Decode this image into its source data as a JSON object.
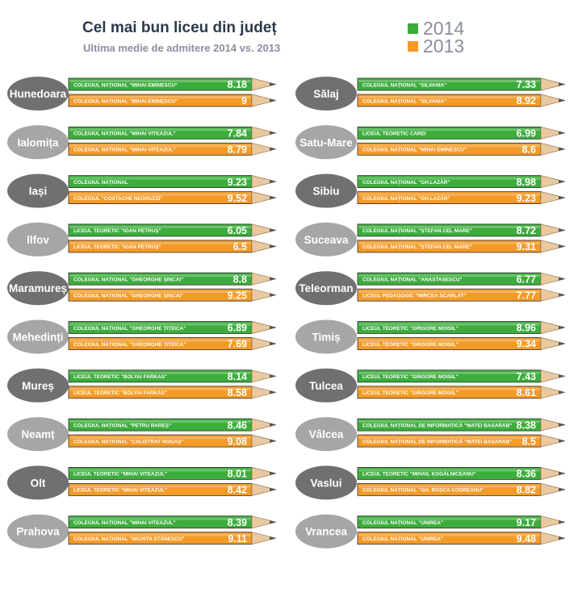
{
  "colors": {
    "green": "#3cad3c",
    "orange": "#f39a27",
    "oval_dark": "#707070",
    "oval_light": "#a6a6a6",
    "pencil_tip": "#e9c9a0",
    "pencil_lead": "#555555"
  },
  "chart_data": {
    "type": "bar",
    "title": "Cel mai bun liceu din județ",
    "subtitle": "Ultima medie de admitere 2014 vs. 2013",
    "legend": [
      {
        "name": "2014",
        "color": "#3cad3c"
      },
      {
        "name": "2013",
        "color": "#f39a27"
      }
    ],
    "legend_position": "top-right",
    "series_order": [
      "2014",
      "2013"
    ],
    "columns": [
      [
        {
          "county": "Hunedoara",
          "tone": "dark",
          "y2014": {
            "school": "COLEGIUL NAȚIONAL \"MIHAI EMINESCU\"",
            "value": "8.18"
          },
          "y2013": {
            "school": "COLEGIUL NAȚIONAL \"MIHAI EMINESCU\"",
            "value": "9"
          }
        },
        {
          "county": "Ialomița",
          "tone": "light",
          "y2014": {
            "school": "COLEGIUL NAȚIONAL \"MIHAI VITEAZUL\"",
            "value": "7.84"
          },
          "y2013": {
            "school": "COLEGIUL NAȚIONAL \"MIHAI VITEAZUL\"",
            "value": "8.79"
          }
        },
        {
          "county": "Iași",
          "tone": "dark",
          "y2014": {
            "school": "COLEGIUL NAȚIONAL",
            "value": "9.23"
          },
          "y2013": {
            "school": "COLEGIUL \"COSTACHE NEGRUZZI\"",
            "value": "9.52"
          }
        },
        {
          "county": "Ilfov",
          "tone": "light",
          "y2014": {
            "school": "LICEUL TEORETIC \"IOAN PETRUȘ\"",
            "value": "6.05"
          },
          "y2013": {
            "school": "LICEUL TEORETIC \"IOAN PETRUȘ\"",
            "value": "6.5"
          }
        },
        {
          "county": "Maramureș",
          "tone": "dark",
          "y2014": {
            "school": "COLEGIUL NAȚIONAL \"GHEORGHE ȘINCAI\"",
            "value": "8.8"
          },
          "y2013": {
            "school": "COLEGIUL NAȚIONAL \"GHEORGHE ȘINCAI\"",
            "value": "9.25"
          }
        },
        {
          "county": "Mehedinți",
          "tone": "light",
          "y2014": {
            "school": "COLEGIUL NAȚIONAL \"GHEORGHE ȚIȚEICA\"",
            "value": "6.89"
          },
          "y2013": {
            "school": "COLEGIUL NAȚIONAL \"GHEORGHE ȚIȚEICA\"",
            "value": "7.69"
          }
        },
        {
          "county": "Mureș",
          "tone": "dark",
          "y2014": {
            "school": "LICEUL TEORETIC \"BOLYAI FARKAS\"",
            "value": "8.14"
          },
          "y2013": {
            "school": "LICEUL TEORETIC \"BOLYAI FARKAS\"",
            "value": "8.58"
          }
        },
        {
          "county": "Neamț",
          "tone": "light",
          "y2014": {
            "school": "COLEGIUL NAȚIONAL \"PETRU RAREȘ\"",
            "value": "8.46"
          },
          "y2013": {
            "school": "COLEGIUL NAȚIONAL \"CALISTRAT HOGAȘ\"",
            "value": "9.08"
          }
        },
        {
          "county": "Olt",
          "tone": "dark",
          "y2014": {
            "school": "LICEUL TEORETIC \"MIHAI VITEAZUL\"",
            "value": "8.01"
          },
          "y2013": {
            "school": "LICEUL TEORETIC \"MIHAI VITEAZUL\"",
            "value": "8.42"
          }
        },
        {
          "county": "Prahova",
          "tone": "light",
          "y2014": {
            "school": "COLEGIUL NAȚIONAL \"MIHAI VITEAZUL\"",
            "value": "8.39"
          },
          "y2013": {
            "school": "COLEGIUL NAȚIONAL \"NICHITA STĂNESCU\"",
            "value": "9.11"
          }
        }
      ],
      [
        {
          "county": "Sălaj",
          "tone": "dark",
          "y2014": {
            "school": "COLEGIUL NAȚIONAL \"SILVANIA\"",
            "value": "7.33"
          },
          "y2013": {
            "school": "COLEGIUL NAȚIONAL \"SILVANIA\"",
            "value": "8.92"
          }
        },
        {
          "county": "Satu-Mare",
          "tone": "light",
          "y2014": {
            "school": "LICEUL TEORETIC CAREI",
            "value": "6.99"
          },
          "y2013": {
            "school": "COLEGIUL NAȚIONAL \"MIHAI EMINESCU\"",
            "value": "8.6"
          }
        },
        {
          "county": "Sibiu",
          "tone": "dark",
          "y2014": {
            "school": "COLEGIUL NAȚIONAL \"GH.LAZĂR\"",
            "value": "8.98"
          },
          "y2013": {
            "school": "COLEGIUL NAȚIONAL \"GH.LAZĂR\"",
            "value": "9.23"
          }
        },
        {
          "county": "Suceava",
          "tone": "light",
          "y2014": {
            "school": "COLEGIUL NAȚIONAL \"ȘTEFAN CEL MARE\"",
            "value": "8.72"
          },
          "y2013": {
            "school": "COLEGIUL NAȚIONAL \"ȘTEFAN CEL MARE\"",
            "value": "9.31"
          }
        },
        {
          "county": "Teleorman",
          "tone": "dark",
          "y2014": {
            "school": "COLEGIUL NAȚIONAL \"ANASTASESCU\"",
            "value": "6.77"
          },
          "y2013": {
            "school": "LICEUL PEDAGOGIC \"MIRCEA SCARLAT\"",
            "value": "7.77"
          }
        },
        {
          "county": "Timiș",
          "tone": "light",
          "y2014": {
            "school": "LICEUL TEORETIC \"GRIGORE MOISIL\"",
            "value": "8.96"
          },
          "y2013": {
            "school": "LICEUL TEORETIC \"GRIGORE MOISIL\"",
            "value": "9.34"
          }
        },
        {
          "county": "Tulcea",
          "tone": "dark",
          "y2014": {
            "school": "LICEUL TEORETIC \"GRIGORE MOISIL\"",
            "value": "7.43"
          },
          "y2013": {
            "school": "LICEUL TEORETIC \"GRIGORE MOISIL\"",
            "value": "8.61"
          }
        },
        {
          "county": "Vâlcea",
          "tone": "light",
          "y2014": {
            "school": "COLEGIUL NAȚIONAL DE INFORMATICĂ \"MATEI BASARAB\"",
            "value": "8.38"
          },
          "y2013": {
            "school": "COLEGIUL NAȚIONAL DE INFORMATICĂ \"MATEI BASARAB\"",
            "value": "8.5"
          }
        },
        {
          "county": "Vaslui",
          "tone": "dark",
          "y2014": {
            "school": "LICEUL TEORETIC \"MIHAIL KOGĂLNICEANU\"",
            "value": "8.36"
          },
          "y2013": {
            "school": "COLEGIUL NAȚIONAL \"GH. ROȘCA CODREANU\"",
            "value": "8.82"
          }
        },
        {
          "county": "Vrancea",
          "tone": "light",
          "y2014": {
            "school": "COLEGIUL NAȚIONAL \"UNIREA\"",
            "value": "9.17"
          },
          "y2013": {
            "school": "COLEGIUL NAȚIONAL \"UNIREA\"",
            "value": "9.48"
          }
        }
      ]
    ]
  }
}
